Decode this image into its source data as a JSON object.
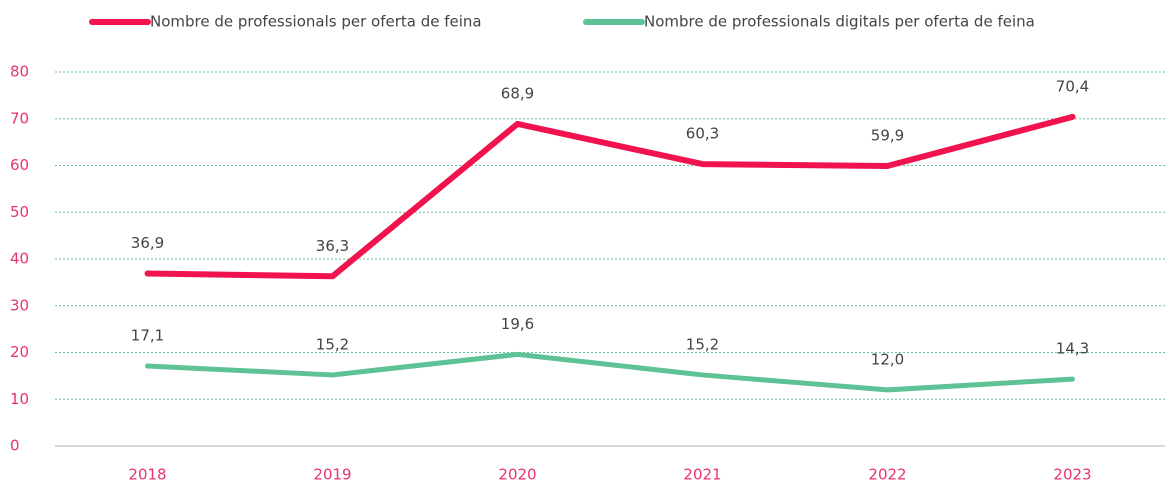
{
  "chart_data": {
    "type": "line",
    "categories": [
      "2018",
      "2019",
      "2020",
      "2021",
      "2022",
      "2023"
    ],
    "series": [
      {
        "name": "Nombre de professionals per oferta de feina",
        "color": "#f0134d",
        "values": [
          36.9,
          36.3,
          68.9,
          60.3,
          59.9,
          70.4
        ],
        "value_labels": [
          "36,9",
          "36,3",
          "68,9",
          "60,3",
          "59,9",
          "70,4"
        ]
      },
      {
        "name": "Nombre de professionals digitals per oferta de feina",
        "color": "#5fc296",
        "values": [
          17.1,
          15.2,
          19.6,
          15.2,
          12.0,
          14.3
        ],
        "value_labels": [
          "17,1",
          "15,2",
          "19,6",
          "15,2",
          "12,0",
          "14,3"
        ]
      }
    ],
    "ylim": [
      0,
      80
    ],
    "yticks": [
      0,
      10,
      20,
      30,
      40,
      50,
      60,
      70,
      80
    ],
    "grid": true,
    "tick_color": "#e8336d",
    "legend": "top"
  }
}
